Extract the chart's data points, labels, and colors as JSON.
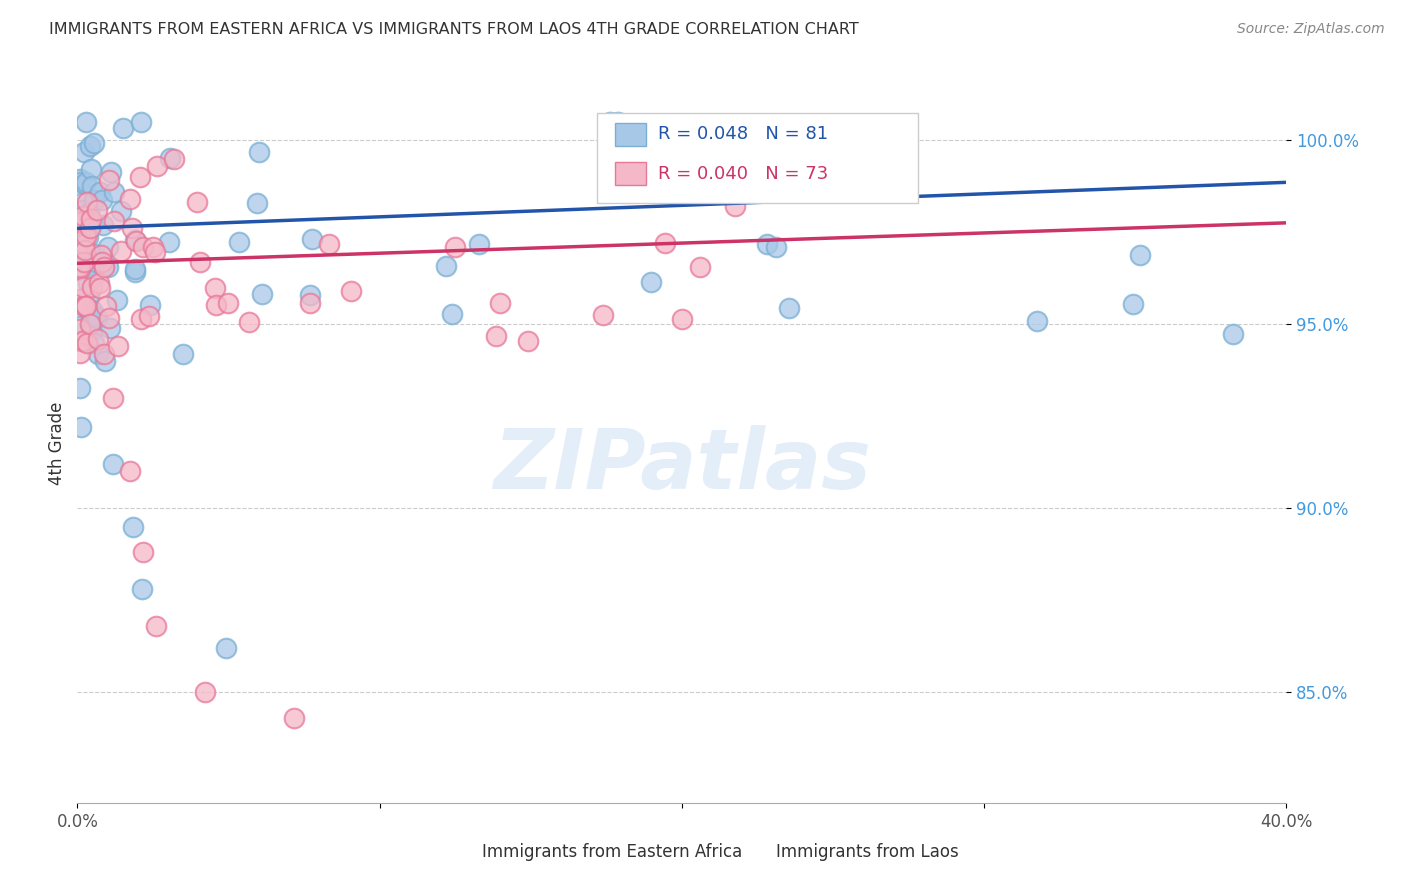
{
  "title": "IMMIGRANTS FROM EASTERN AFRICA VS IMMIGRANTS FROM LAOS 4TH GRADE CORRELATION CHART",
  "source": "Source: ZipAtlas.com",
  "ylabel": "4th Grade",
  "xlim": [
    0.0,
    0.4
  ],
  "ylim": [
    0.82,
    1.015
  ],
  "yticks": [
    0.85,
    0.9,
    0.95,
    1.0
  ],
  "ytick_labels": [
    "85.0%",
    "90.0%",
    "95.0%",
    "100.0%"
  ],
  "xticks": [
    0.0,
    0.1,
    0.2,
    0.3,
    0.4
  ],
  "r_blue": 0.048,
  "n_blue": 81,
  "r_pink": 0.04,
  "n_pink": 73,
  "blue_color": "#a8c8e8",
  "blue_edge": "#7aafd4",
  "pink_color": "#f4b8c8",
  "pink_edge": "#e87898",
  "line_blue": "#2255aa",
  "line_pink": "#cc3366",
  "legend_blue": "Immigrants from Eastern Africa",
  "legend_pink": "Immigrants from Laos",
  "watermark": "ZIPatlas",
  "background_color": "#ffffff",
  "blue_line_y0": 0.976,
  "blue_line_y1": 0.9885,
  "pink_line_y0": 0.9665,
  "pink_line_y1": 0.9775
}
